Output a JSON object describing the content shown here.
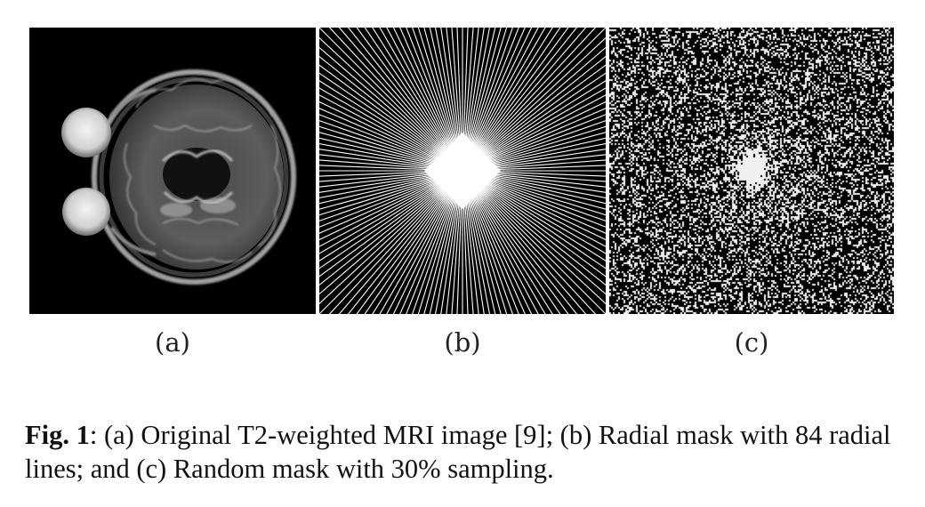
{
  "figure": {
    "panels": [
      {
        "id": "a",
        "label": "(a)",
        "content": "brain-mri-axial-t2"
      },
      {
        "id": "b",
        "label": "(b)",
        "content": "radial-sampling-mask"
      },
      {
        "id": "c",
        "label": "(c)",
        "content": "random-sampling-mask"
      }
    ],
    "caption": {
      "fig_label": "Fig. 1",
      "text": ": (a) Original T2-weighted MRI image [9]; (b) Radial mask with 84 radial lines; and (c) Random mask with 30% sampling."
    }
  },
  "radial_mask": {
    "line_count": 84
  },
  "random_mask": {
    "sampling_percent": 30
  }
}
